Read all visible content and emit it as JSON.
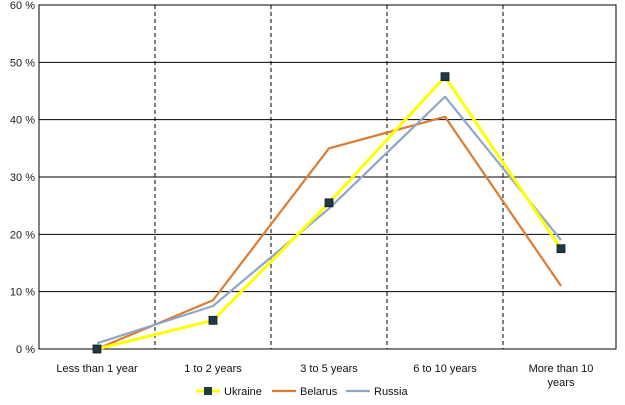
{
  "chart_data": {
    "type": "line",
    "title": "",
    "xlabel": "",
    "ylabel": "",
    "ylim": [
      0,
      60
    ],
    "y_ticks": [
      "0 %",
      "10 %",
      "20 %",
      "30 %",
      "40 %",
      "50 %",
      "60 %"
    ],
    "y_tick_values": [
      0,
      10,
      20,
      30,
      40,
      50,
      60
    ],
    "categories": [
      [
        "Less than 1 year"
      ],
      [
        "1 to 2 years"
      ],
      [
        "3 to 5 years"
      ],
      [
        "6 to 10 years"
      ],
      [
        "More than 10",
        "years"
      ]
    ],
    "grid": "horizontal solid, vertical dashed",
    "legend_placement": "bottom",
    "series": [
      {
        "name": "Ukraine",
        "color": "#ffff00",
        "marker": "square",
        "marker_color": "#1f3a44",
        "values": [
          0,
          5,
          25.5,
          47.5,
          17.5
        ]
      },
      {
        "name": "Belarus",
        "color": "#e07b2e",
        "marker": "none",
        "values": [
          0,
          8.5,
          35,
          40.5,
          11
        ]
      },
      {
        "name": "Russia",
        "color": "#8fa6c8",
        "marker": "none",
        "values": [
          1,
          7.5,
          24.5,
          44,
          19
        ]
      }
    ]
  }
}
